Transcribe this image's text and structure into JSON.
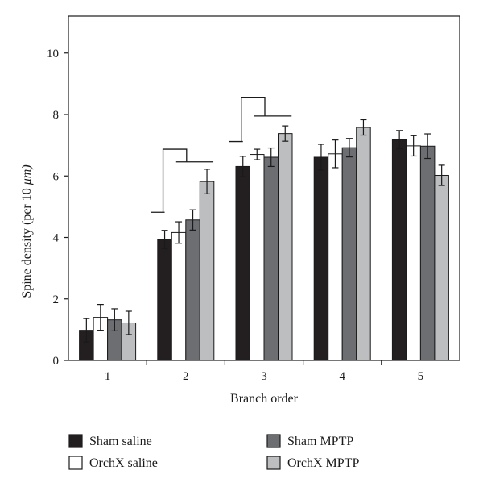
{
  "chart_data": {
    "type": "bar",
    "categories": [
      "1",
      "2",
      "3",
      "4",
      "5"
    ],
    "xlabel": "Branch order",
    "ylabel_main": "Spine density (per 10 ",
    "ylabel_unit": "μm)",
    "ylim": [
      0,
      11.2
    ],
    "yticks": [
      0,
      2,
      4,
      6,
      8,
      10
    ],
    "grid": false,
    "legend_position": "bottom",
    "series": [
      {
        "name": "Sham saline",
        "color": "#231f20",
        "values": [
          0.98,
          3.93,
          6.31,
          6.61,
          7.18
        ],
        "errors": [
          0.38,
          0.3,
          0.33,
          0.42,
          0.3
        ]
      },
      {
        "name": "OrchX saline",
        "color": "#ffffff",
        "values": [
          1.4,
          4.16,
          6.7,
          6.72,
          6.98
        ],
        "errors": [
          0.42,
          0.35,
          0.17,
          0.45,
          0.33
        ]
      },
      {
        "name": "Sham MPTP",
        "color": "#6d6e71",
        "values": [
          1.32,
          4.57,
          6.61,
          6.92,
          6.97
        ],
        "errors": [
          0.36,
          0.33,
          0.3,
          0.3,
          0.4
        ]
      },
      {
        "name": "OrchX MPTP",
        "color": "#bcbec0",
        "values": [
          1.22,
          5.82,
          7.38,
          7.58,
          6.02
        ],
        "errors": [
          0.38,
          0.4,
          0.25,
          0.25,
          0.33
        ]
      }
    ],
    "significance_brackets": [
      {
        "category": "2",
        "levels": [
          4.82,
          6.87,
          6.46
        ],
        "left_series": 0,
        "right_series": 3
      },
      {
        "category": "3",
        "levels": [
          7.12,
          8.56,
          7.95
        ],
        "left_series": 0,
        "right_series": 3
      }
    ]
  }
}
